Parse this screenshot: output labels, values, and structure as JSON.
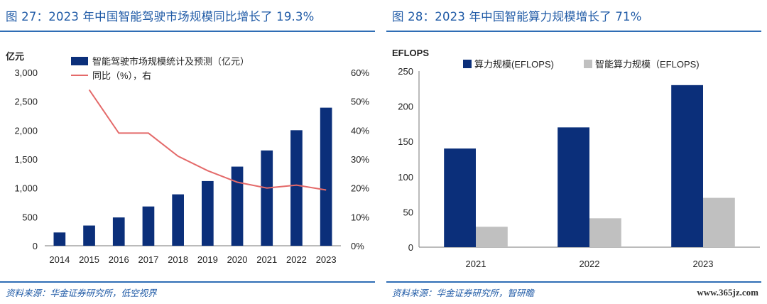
{
  "left": {
    "title": "图 27：2023 年中国智能驾驶市场规模同比增长了 19.3%",
    "source": "资料来源：华金证券研究所，低空视界"
  },
  "right": {
    "title": "图 28：2023 年中国智能算力规模增长了 71%",
    "source": "资料来源：华金证券研究所，智研瞻"
  },
  "watermark": "www.365jz.com",
  "chart_data": [
    {
      "type": "bar",
      "ylabel": "亿元",
      "categories": [
        "2014",
        "2015",
        "2016",
        "2017",
        "2018",
        "2019",
        "2020",
        "2021",
        "2022",
        "2023"
      ],
      "ylim": [
        0,
        3000
      ],
      "yticks": [
        "0",
        "500",
        "1,000",
        "1,500",
        "2,000",
        "2,500",
        "3,000"
      ],
      "y2lim": [
        0,
        60
      ],
      "y2ticks": [
        "0%",
        "10%",
        "20%",
        "30%",
        "40%",
        "50%",
        "60%"
      ],
      "legend_placement": "top-left",
      "series": [
        {
          "name": "智能驾驶市场规模统计及预测（亿元）",
          "type": "bar",
          "color": "#0b2f7a",
          "values": [
            230,
            350,
            490,
            680,
            890,
            1120,
            1370,
            1650,
            2000,
            2390
          ]
        },
        {
          "name": "同比（%），右",
          "type": "line",
          "axis": "right",
          "color": "#e46a6a",
          "values": [
            null,
            54,
            39,
            39,
            31,
            26,
            22,
            20,
            21,
            19.3
          ]
        }
      ]
    },
    {
      "type": "bar",
      "ylabel": "EFLOPS",
      "categories": [
        "2021",
        "2022",
        "2023"
      ],
      "ylim": [
        0,
        250
      ],
      "yticks": [
        "0",
        "50",
        "100",
        "150",
        "200",
        "250"
      ],
      "legend_placement": "top",
      "series": [
        {
          "name": "算力规模(EFLOPS)",
          "color": "#0b2f7a",
          "values": [
            140,
            170,
            230
          ]
        },
        {
          "name": "智能算力规模（EFLOPS)",
          "color": "#c0c0c0",
          "values": [
            29,
            41,
            70
          ]
        }
      ]
    }
  ]
}
